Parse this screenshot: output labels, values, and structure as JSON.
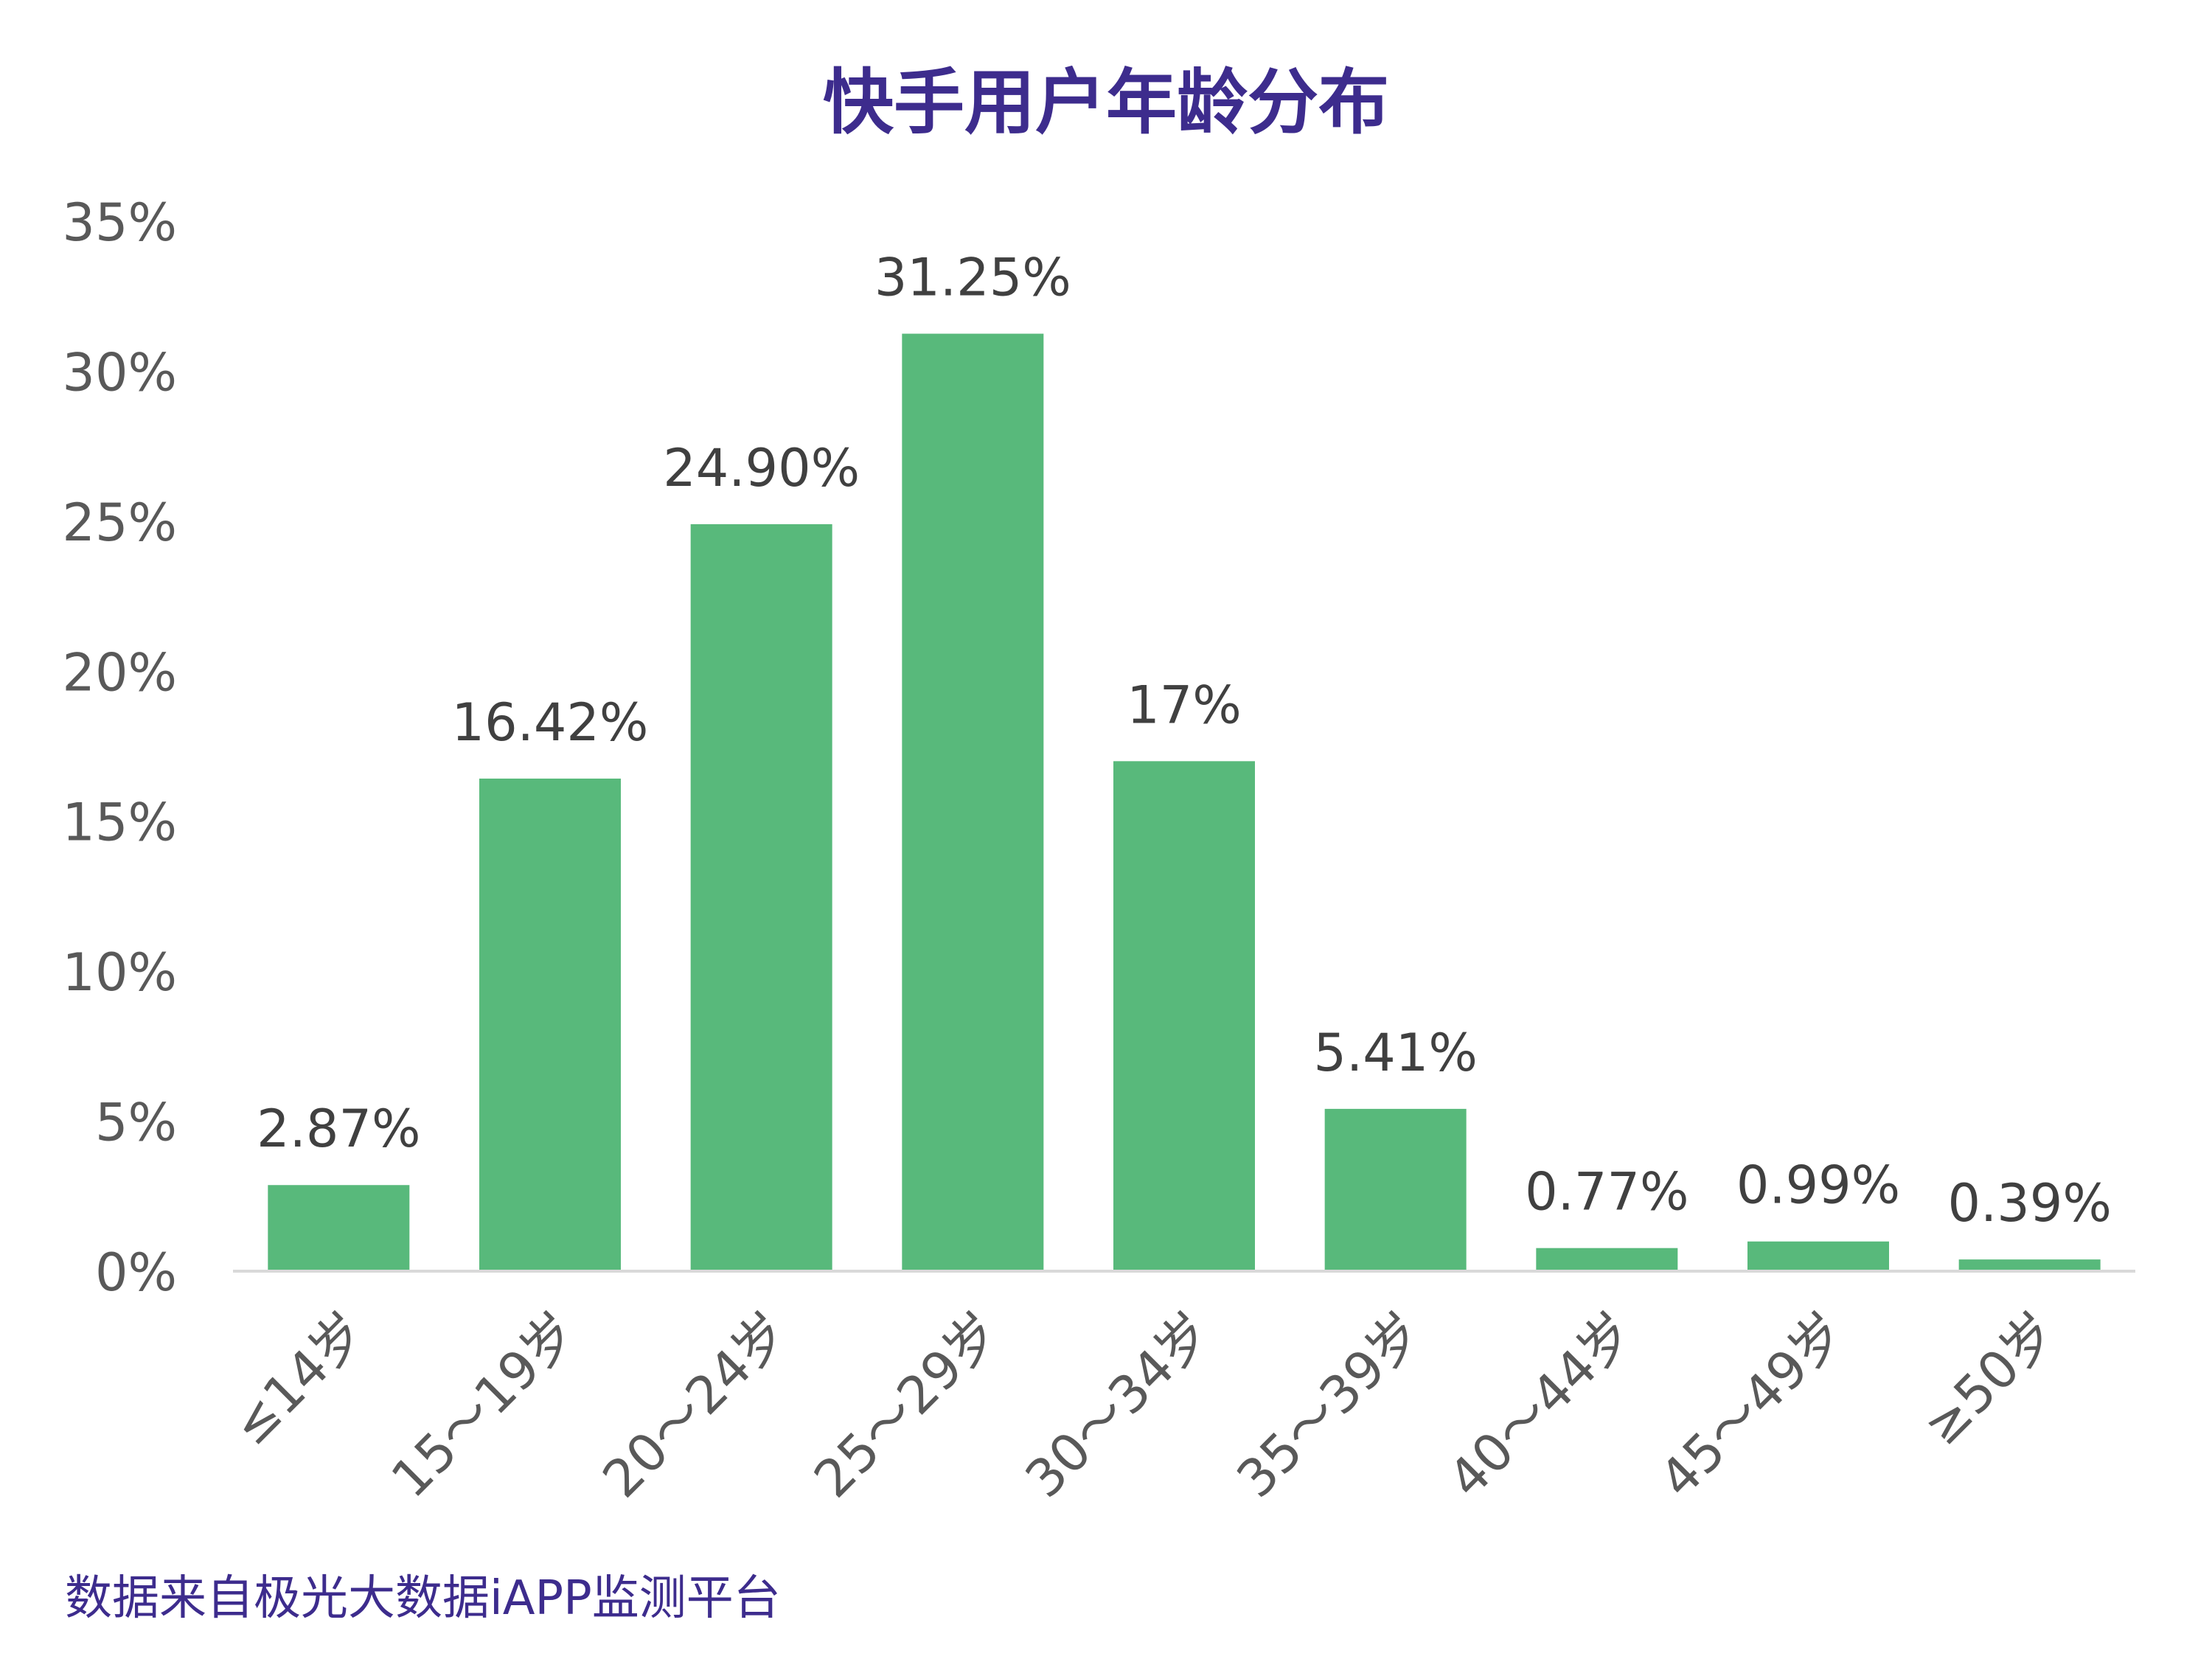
{
  "chart_data": {
    "type": "bar",
    "title": "快手用户年龄分布",
    "categories": [
      "≤14岁",
      "15～19岁",
      "20～24岁",
      "25～29岁",
      "30～34岁",
      "35～39岁",
      "40～44岁",
      "45～49岁",
      "≥50岁"
    ],
    "values": [
      2.87,
      16.42,
      24.9,
      31.25,
      17,
      5.41,
      0.77,
      0.99,
      0.39
    ],
    "data_labels": [
      "2.87%",
      "16.42%",
      "24.90%",
      "31.25%",
      "17%",
      "5.41%",
      "0.77%",
      "0.99%",
      "0.39%"
    ],
    "xlabel": "",
    "ylabel": "",
    "ylim": [
      0,
      35
    ],
    "yticks": [
      0,
      5,
      10,
      15,
      20,
      25,
      30,
      35
    ],
    "ytick_labels": [
      "0%",
      "5%",
      "10%",
      "15%",
      "20%",
      "25%",
      "30%",
      "35%"
    ],
    "grid": false,
    "legend": "none"
  },
  "footnote": "数据来自极光大数据iAPP监测平台",
  "colors": {
    "bar": "#58b97b",
    "title": "#3d2c8d",
    "footnote": "#3d2c8d",
    "axis_text": "#595959",
    "label_text": "#404040",
    "axis_line": "#d9d9d9"
  }
}
